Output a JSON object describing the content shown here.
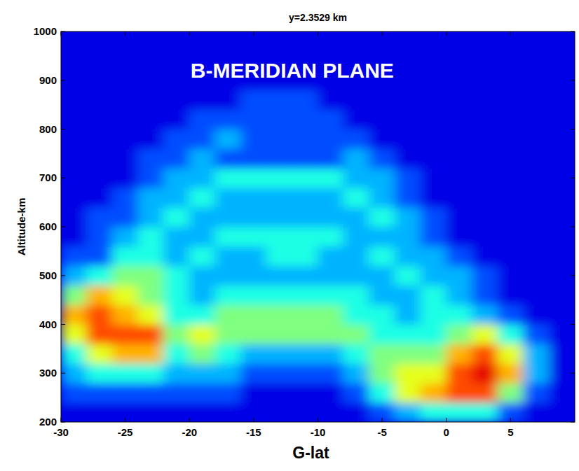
{
  "chart_data": {
    "type": "heatmap",
    "title": "y=2.3529 km",
    "annotation": "B-MERIDIAN PLANE",
    "x_label": "G-lat",
    "y_label": "Altitude-km",
    "xlim": [
      -30,
      10
    ],
    "ylim": [
      200,
      1000
    ],
    "xticks": [
      -30,
      -25,
      -20,
      -15,
      -10,
      -5,
      0,
      5
    ],
    "yticks": [
      200,
      300,
      400,
      500,
      600,
      700,
      800,
      900,
      1000
    ],
    "x": [
      -29,
      -27,
      -25,
      -23,
      -21,
      -19,
      -17,
      -15,
      -13,
      -11,
      -9,
      -7,
      -5,
      -3,
      -1,
      1,
      3,
      5,
      7,
      9
    ],
    "y": [
      220,
      260,
      300,
      340,
      380,
      420,
      460,
      500,
      540,
      580,
      620,
      660,
      700,
      740,
      780,
      820,
      860,
      900,
      940,
      980
    ],
    "zlim": [
      0,
      10
    ],
    "cells": [
      [
        1,
        1,
        1,
        1,
        1,
        1,
        1,
        1,
        1,
        1,
        1,
        1,
        2,
        3,
        4,
        4,
        4,
        2,
        1,
        1
      ],
      [
        2,
        2,
        2,
        2,
        2,
        2,
        2,
        1,
        1,
        1,
        1,
        2,
        4,
        6,
        7,
        8,
        8,
        5,
        2,
        1
      ],
      [
        3,
        4,
        4,
        4,
        3,
        3,
        3,
        2,
        2,
        2,
        2,
        3,
        5,
        6,
        6,
        8,
        9,
        7,
        3,
        1
      ],
      [
        4,
        6,
        7,
        7,
        4,
        5,
        4,
        3,
        3,
        3,
        3,
        4,
        5,
        5,
        5,
        7,
        8,
        6,
        3,
        1
      ],
      [
        6,
        8,
        8,
        8,
        5,
        6,
        5,
        5,
        5,
        5,
        5,
        5,
        4,
        4,
        4,
        5,
        6,
        4,
        2,
        1
      ],
      [
        7,
        8,
        7,
        6,
        4,
        4,
        5,
        5,
        5,
        5,
        5,
        4,
        4,
        3,
        4,
        4,
        3,
        2,
        1,
        1
      ],
      [
        5,
        7,
        6,
        5,
        4,
        3,
        4,
        4,
        4,
        4,
        4,
        4,
        3,
        3,
        4,
        3,
        2,
        1,
        1,
        1
      ],
      [
        3,
        4,
        5,
        5,
        4,
        3,
        3,
        3,
        3,
        3,
        3,
        3,
        3,
        4,
        3,
        3,
        2,
        1,
        1,
        1
      ],
      [
        2,
        2,
        4,
        4,
        3,
        4,
        3,
        3,
        4,
        4,
        3,
        3,
        4,
        3,
        3,
        2,
        1,
        1,
        1,
        1
      ],
      [
        1,
        2,
        3,
        4,
        3,
        3,
        4,
        4,
        4,
        4,
        4,
        3,
        3,
        3,
        2,
        1,
        1,
        1,
        1,
        1
      ],
      [
        1,
        2,
        2,
        3,
        4,
        3,
        3,
        3,
        3,
        3,
        3,
        3,
        4,
        3,
        2,
        1,
        1,
        1,
        1,
        1
      ],
      [
        1,
        1,
        2,
        3,
        3,
        4,
        3,
        3,
        3,
        3,
        3,
        4,
        3,
        2,
        1,
        1,
        1,
        1,
        1,
        1
      ],
      [
        1,
        1,
        1,
        2,
        3,
        3,
        4,
        4,
        4,
        4,
        4,
        3,
        3,
        2,
        1,
        1,
        1,
        1,
        1,
        1
      ],
      [
        1,
        1,
        1,
        2,
        2,
        3,
        2,
        2,
        2,
        2,
        2,
        3,
        2,
        1,
        1,
        1,
        1,
        1,
        1,
        1
      ],
      [
        1,
        1,
        1,
        1,
        2,
        2,
        3,
        2,
        2,
        2,
        2,
        2,
        1,
        1,
        1,
        1,
        1,
        1,
        1,
        1
      ],
      [
        1,
        1,
        1,
        1,
        1,
        2,
        2,
        2,
        2,
        2,
        2,
        1,
        1,
        1,
        1,
        1,
        1,
        1,
        1,
        1
      ],
      [
        1,
        1,
        1,
        1,
        1,
        1,
        1,
        2,
        2,
        2,
        1,
        1,
        1,
        1,
        1,
        1,
        1,
        1,
        1,
        1
      ],
      [
        1,
        1,
        1,
        1,
        1,
        1,
        1,
        1,
        1,
        1,
        1,
        1,
        1,
        1,
        1,
        1,
        1,
        1,
        1,
        1
      ],
      [
        1,
        1,
        1,
        1,
        1,
        1,
        1,
        1,
        1,
        1,
        1,
        1,
        1,
        1,
        1,
        1,
        1,
        1,
        1,
        1
      ],
      [
        1,
        1,
        1,
        1,
        1,
        1,
        1,
        1,
        1,
        1,
        1,
        1,
        1,
        1,
        1,
        1,
        1,
        1,
        1,
        1
      ]
    ]
  }
}
